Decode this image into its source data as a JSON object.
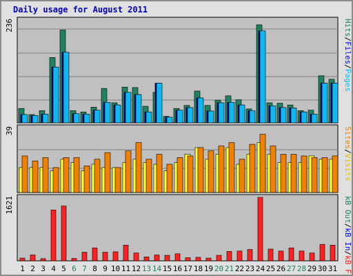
{
  "title": "Daily usage for August 2011",
  "colors": {
    "hits": "#208060",
    "files": "#10b8f0",
    "pages": "#10b8f0",
    "visits": "#ffff30",
    "sites": "#f08000",
    "kbin": "#ff2020",
    "weekday_label": "#000000",
    "weekend_label": "#208060"
  },
  "chart_data": [
    {
      "type": "bar",
      "panel": "pages-files-hits",
      "categories": [
        "1",
        "2",
        "3",
        "4",
        "5",
        "6",
        "7",
        "8",
        "9",
        "10",
        "11",
        "12",
        "13",
        "14",
        "15",
        "16",
        "17",
        "18",
        "19",
        "20",
        "21",
        "22",
        "23",
        "24",
        "25",
        "26",
        "27",
        "28",
        "29",
        "30",
        "31"
      ],
      "ymax_label": "236",
      "ylim": [
        0,
        236
      ],
      "legend": [
        "Pages",
        "/",
        "Files",
        "/",
        "Hits"
      ],
      "series": [
        {
          "name": "Hits",
          "values": [
            33,
            19,
            28,
            150,
            213,
            28,
            25,
            36,
            79,
            46,
            82,
            81,
            38,
            70,
            15,
            33,
            40,
            73,
            40,
            52,
            62,
            53,
            32,
            225,
            46,
            45,
            41,
            28,
            29,
            108,
            100
          ]
        },
        {
          "name": "Files",
          "values": [
            19,
            17,
            20,
            128,
            162,
            21,
            20,
            29,
            47,
            41,
            70,
            65,
            25,
            91,
            13,
            29,
            35,
            57,
            27,
            46,
            47,
            41,
            28,
            211,
            39,
            35,
            34,
            25,
            20,
            91,
            91
          ]
        },
        {
          "name": "Pages",
          "values": [
            16,
            14,
            18,
            125,
            120,
            18,
            16,
            24,
            45,
            38,
            50,
            60,
            22,
            86,
            11,
            26,
            28,
            53,
            24,
            38,
            42,
            35,
            25,
            120,
            33,
            30,
            30,
            20,
            17,
            85,
            90
          ]
        }
      ]
    },
    {
      "type": "bar",
      "panel": "visits-sites",
      "categories": [
        "1",
        "2",
        "3",
        "4",
        "5",
        "6",
        "7",
        "8",
        "9",
        "10",
        "11",
        "12",
        "13",
        "14",
        "15",
        "16",
        "17",
        "18",
        "19",
        "20",
        "21",
        "22",
        "23",
        "24",
        "25",
        "26",
        "27",
        "28",
        "29",
        "30",
        "31"
      ],
      "ymax_label": "39",
      "ylim": [
        0,
        39
      ],
      "legend": [
        "Visits",
        "/",
        "Sites"
      ],
      "series": [
        {
          "name": "Visits",
          "values": [
            15,
            15,
            15,
            13,
            20,
            18,
            13,
            17,
            15,
            15,
            18,
            20,
            18,
            17,
            13,
            18,
            23,
            27,
            20,
            23,
            27,
            17,
            23,
            30,
            23,
            18,
            18,
            18,
            22,
            20,
            20
          ]
        },
        {
          "name": "Sites",
          "values": [
            22,
            19,
            21,
            15,
            21,
            21,
            16,
            20,
            24,
            15,
            25,
            30,
            20,
            23,
            17,
            21,
            22,
            27,
            25,
            28,
            30,
            20,
            29,
            35,
            28,
            23,
            23,
            22,
            21,
            21,
            22
          ]
        }
      ]
    },
    {
      "type": "bar",
      "panel": "kb",
      "categories": [
        "1",
        "2",
        "3",
        "4",
        "5",
        "6",
        "7",
        "8",
        "9",
        "10",
        "11",
        "12",
        "13",
        "14",
        "15",
        "16",
        "17",
        "18",
        "19",
        "20",
        "21",
        "22",
        "23",
        "24",
        "25",
        "26",
        "27",
        "28",
        "29",
        "30",
        "31"
      ],
      "ymax_label": "1621",
      "ylim": [
        0,
        1621
      ],
      "legend": [
        "kB F",
        "/",
        "kB In",
        "/",
        "kB Out"
      ],
      "series": [
        {
          "name": "kB In",
          "values": [
            70,
            150,
            55,
            1300,
            1400,
            60,
            220,
            330,
            220,
            230,
            400,
            200,
            100,
            150,
            140,
            180,
            80,
            90,
            70,
            140,
            240,
            250,
            290,
            1621,
            300,
            250,
            330,
            250,
            200,
            420,
            400
          ]
        }
      ]
    }
  ]
}
